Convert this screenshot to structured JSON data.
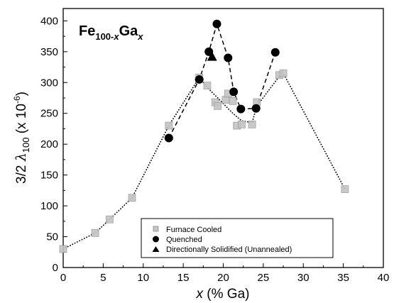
{
  "chart_data": {
    "type": "scatter",
    "title": "",
    "annotation": {
      "element1": "Fe",
      "sub1": "100-",
      "sub1_var": "x",
      "element2": "Ga",
      "sub2_var": "x"
    },
    "xlabel": {
      "var": "x",
      "text": " (% Ga)"
    },
    "ylabel": {
      "prefix": "3/2 ",
      "symbol": "λ",
      "subscript": "100",
      "unit_pre": " (x 10",
      "exponent": "-6",
      "unit_post": ")"
    },
    "xlim": [
      0,
      40
    ],
    "ylim": [
      0,
      420
    ],
    "xticks": [
      0,
      5,
      10,
      15,
      20,
      25,
      30,
      35,
      40
    ],
    "yticks": [
      0,
      50,
      100,
      150,
      200,
      250,
      300,
      350,
      400
    ],
    "legend": {
      "position": "bottom-right",
      "entries": [
        "Furnace Cooled",
        "Quenched",
        "Directionally Solidified (Unannealed)"
      ]
    },
    "series": [
      {
        "name": "Furnace Cooled",
        "marker": "square-gray",
        "color": "#b0b0b0",
        "x": [
          0.0,
          4.0,
          5.8,
          8.6,
          13.2,
          17.0,
          18.0,
          19.0,
          19.3,
          20.3,
          20.6,
          21.2,
          21.7,
          22.3,
          23.6,
          24.2,
          27.0,
          27.5,
          35.2
        ],
        "y": [
          30,
          56,
          78,
          113,
          230,
          308,
          295,
          268,
          262,
          272,
          282,
          270,
          230,
          232,
          232,
          268,
          312,
          315,
          127
        ]
      },
      {
        "name": "Quenched",
        "marker": "circle-black",
        "color": "#000000",
        "x": [
          13.2,
          17.0,
          18.2,
          19.2,
          20.6,
          21.3,
          22.2,
          24.1,
          26.5
        ],
        "y": [
          210,
          305,
          350,
          395,
          340,
          285,
          257,
          258,
          349
        ]
      },
      {
        "name": "Directionally Solidified (Unannealed)",
        "marker": "triangle-black",
        "color": "#000000",
        "x": [
          18.6
        ],
        "y": [
          341
        ]
      }
    ],
    "trend_lines": [
      {
        "style": "dotted",
        "x": [
          0.0,
          4.0,
          5.8,
          8.6,
          13.2,
          17.0,
          18.0,
          19.3,
          21.2,
          22.3,
          23.6,
          24.2,
          27.0,
          27.5,
          35.2
        ],
        "y": [
          30,
          56,
          78,
          113,
          230,
          308,
          292,
          275,
          250,
          238,
          235,
          262,
          310,
          315,
          127
        ]
      },
      {
        "style": "dashed",
        "x": [
          13.2,
          17.0,
          18.2,
          19.2,
          20.6,
          21.3,
          22.2,
          24.1,
          26.5
        ],
        "y": [
          210,
          305,
          350,
          395,
          340,
          285,
          257,
          258,
          349
        ]
      }
    ]
  }
}
